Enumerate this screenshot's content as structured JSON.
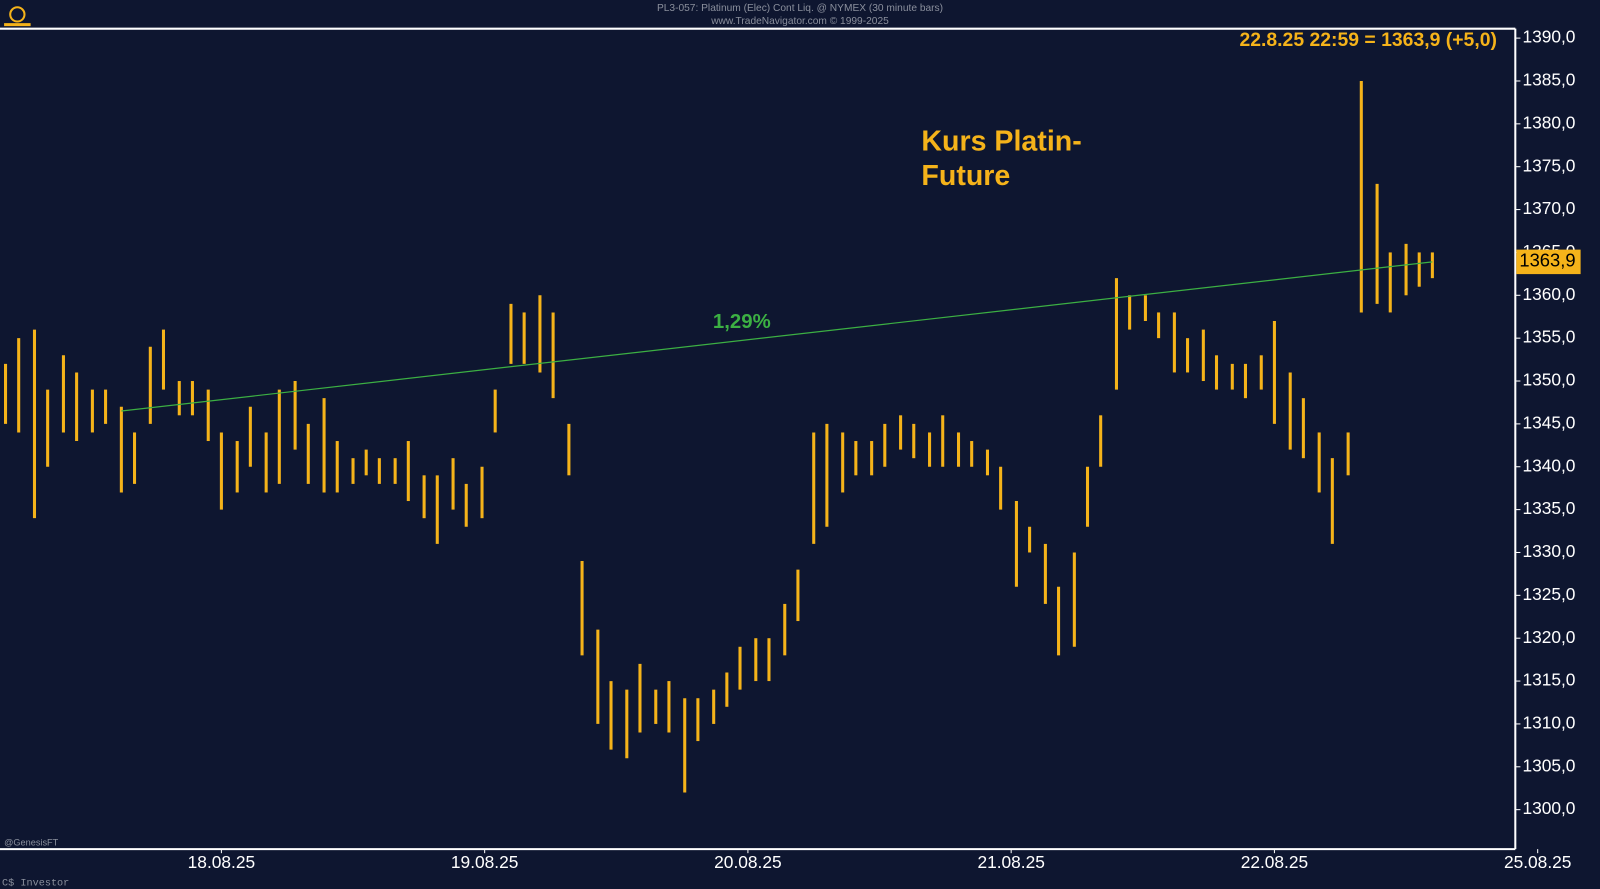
{
  "chart_data": {
    "type": "ohlc",
    "title": "PL3-057: Platinum (Elec) Cont Liq. @ NYMEX (30 minute bars)",
    "subtitle": "www.TradeNavigator.com © 1999-2025",
    "info": "22.8.25 22:59 = 1363,9 (+5,0)",
    "annotation": [
      "Kurs Platin-",
      "Future"
    ],
    "footer_left": "@GenesisFT",
    "footer_bottom": "C$ Investor",
    "last_price": {
      "value": 1363.9,
      "label": "1363,9"
    },
    "color": "#f5b31a",
    "trendline": {
      "label": "1,29%",
      "color": "#3cb043",
      "x": [
        -0.38,
        4.6
      ],
      "values": [
        1346.5,
        1363.9
      ]
    },
    "x": [
      -0.82,
      -0.77,
      -0.71,
      -0.66,
      -0.6,
      -0.55,
      -0.49,
      -0.44,
      -0.38,
      -0.33,
      -0.27,
      -0.22,
      -0.16,
      -0.11,
      -0.05,
      0.0,
      0.06,
      0.11,
      0.17,
      0.22,
      0.28,
      0.33,
      0.39,
      0.44,
      0.5,
      0.55,
      0.6,
      0.66,
      0.71,
      0.77,
      0.82,
      0.88,
      0.93,
      0.99,
      1.04,
      1.1,
      1.15,
      1.21,
      1.26,
      1.32,
      1.37,
      1.43,
      1.48,
      1.54,
      1.59,
      1.65,
      1.7,
      1.76,
      1.81,
      1.87,
      1.92,
      1.97,
      2.03,
      2.08,
      2.14,
      2.19,
      2.25,
      2.3,
      2.36,
      2.41,
      2.47,
      2.52,
      2.58,
      2.63,
      2.69,
      2.74,
      2.8,
      2.85,
      2.91,
      2.96,
      3.02,
      3.07,
      3.13,
      3.18,
      3.24,
      3.29,
      3.34,
      3.4,
      3.45,
      3.51,
      3.56,
      3.62,
      3.67,
      3.73,
      3.78,
      3.84,
      3.89,
      3.95,
      4.0,
      4.06,
      4.11,
      4.17,
      4.22,
      4.28,
      4.33,
      4.39,
      4.44,
      4.5,
      4.55,
      4.6
    ],
    "high": [
      1352,
      1355,
      1356,
      1349,
      1353,
      1351,
      1349,
      1349,
      1347,
      1344,
      1354,
      1356,
      1350,
      1350,
      1349,
      1344,
      1343,
      1347,
      1344,
      1349,
      1350,
      1345,
      1348,
      1343,
      1341,
      1342,
      1341,
      1341,
      1343,
      1339,
      1339,
      1341,
      1338,
      1340,
      1349,
      1359,
      1358,
      1360,
      1358,
      1345,
      1329,
      1321,
      1315,
      1314,
      1317,
      1314,
      1315,
      1313,
      1313,
      1314,
      1316,
      1319,
      1320,
      1320,
      1324,
      1328,
      1344,
      1345,
      1344,
      1343,
      1343,
      1345,
      1346,
      1345,
      1344,
      1346,
      1344,
      1343,
      1342,
      1340,
      1336,
      1333,
      1331,
      1326,
      1330,
      1340,
      1346,
      1362,
      1360,
      1360,
      1358,
      1358,
      1355,
      1356,
      1353,
      1352,
      1352,
      1353,
      1357,
      1351,
      1348,
      1344,
      1341,
      1344,
      1385,
      1373,
      1365,
      1366,
      1365,
      1365
    ],
    "low": [
      1345,
      1344,
      1334,
      1340,
      1344,
      1343,
      1344,
      1345,
      1337,
      1338,
      1345,
      1349,
      1346,
      1346,
      1343,
      1335,
      1337,
      1340,
      1337,
      1338,
      1342,
      1338,
      1337,
      1337,
      1338,
      1339,
      1338,
      1338,
      1336,
      1334,
      1331,
      1335,
      1333,
      1334,
      1344,
      1352,
      1352,
      1351,
      1348,
      1339,
      1318,
      1310,
      1307,
      1306,
      1309,
      1310,
      1309,
      1302,
      1308,
      1310,
      1312,
      1314,
      1315,
      1315,
      1318,
      1322,
      1331,
      1333,
      1337,
      1339,
      1339,
      1340,
      1342,
      1341,
      1340,
      1340,
      1340,
      1340,
      1339,
      1335,
      1326,
      1330,
      1324,
      1318,
      1319,
      1333,
      1340,
      1349,
      1356,
      1357,
      1355,
      1351,
      1351,
      1350,
      1349,
      1349,
      1348,
      1349,
      1345,
      1342,
      1341,
      1337,
      1331,
      1339,
      1358,
      1359,
      1358,
      1360,
      1361,
      1362
    ],
    "xlim": [
      -0.841,
      4.915
    ],
    "ylim": [
      1295.4,
      1391.1
    ],
    "xticks": [
      {
        "value": 0,
        "label": "18.08.25"
      },
      {
        "value": 1,
        "label": "19.08.25"
      },
      {
        "value": 2,
        "label": "20.08.25"
      },
      {
        "value": 3,
        "label": "21.08.25"
      },
      {
        "value": 4,
        "label": "22.08.25"
      },
      {
        "value": 5,
        "label": "25.08.25"
      }
    ],
    "yticks": [
      {
        "value": 1300,
        "label": "1300,0"
      },
      {
        "value": 1305,
        "label": "1305,0"
      },
      {
        "value": 1310,
        "label": "1310,0"
      },
      {
        "value": 1315,
        "label": "1315,0"
      },
      {
        "value": 1320,
        "label": "1320,0"
      },
      {
        "value": 1325,
        "label": "1325,0"
      },
      {
        "value": 1330,
        "label": "1330,0"
      },
      {
        "value": 1335,
        "label": "1335,0"
      },
      {
        "value": 1340,
        "label": "1340,0"
      },
      {
        "value": 1345,
        "label": "1345,0"
      },
      {
        "value": 1350,
        "label": "1350,0"
      },
      {
        "value": 1355,
        "label": "1355,0"
      },
      {
        "value": 1360,
        "label": "1360,0"
      },
      {
        "value": 1365,
        "label": "1365,0"
      },
      {
        "value": 1370,
        "label": "1370,0"
      },
      {
        "value": 1375,
        "label": "1375,0"
      },
      {
        "value": 1380,
        "label": "1380,0"
      },
      {
        "value": 1385,
        "label": "1385,0"
      },
      {
        "value": 1390,
        "label": "1390,0"
      }
    ]
  }
}
